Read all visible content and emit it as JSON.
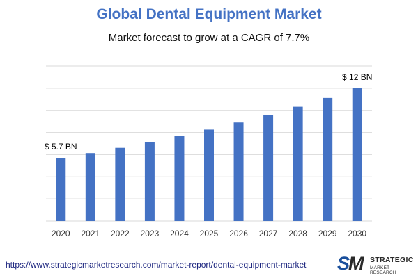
{
  "colors": {
    "title": "#4472c4",
    "bar": "#4472c4",
    "grid": "#d9d9d9",
    "tick": "#333333",
    "annotation": "#000000"
  },
  "chart_data": {
    "type": "bar",
    "title": "Global Dental Equipment Market",
    "subtitle": "Market forecast to grow at a CAGR of 7.7%",
    "xlabel": "",
    "ylabel": "",
    "categories": [
      "2020",
      "2021",
      "2022",
      "2023",
      "2024",
      "2025",
      "2026",
      "2027",
      "2028",
      "2029",
      "2030"
    ],
    "values": [
      5.7,
      6.14,
      6.61,
      7.12,
      7.67,
      8.26,
      8.9,
      9.58,
      10.32,
      11.12,
      12.0
    ],
    "ylim": [
      0,
      14
    ],
    "grid": true,
    "legend": "none",
    "annotations": [
      {
        "category": "2020",
        "text": "$ 5.7 BN"
      },
      {
        "category": "2030",
        "text": "$ 12 BN"
      }
    ]
  },
  "footer": {
    "url": "https://www.strategicmarketresearch.com/market-report/dental-equipment-market"
  },
  "logo": {
    "mark_s": "S",
    "mark_m": "M",
    "line1": "STRATEGIC",
    "line2": "MARKET RESEARCH"
  }
}
